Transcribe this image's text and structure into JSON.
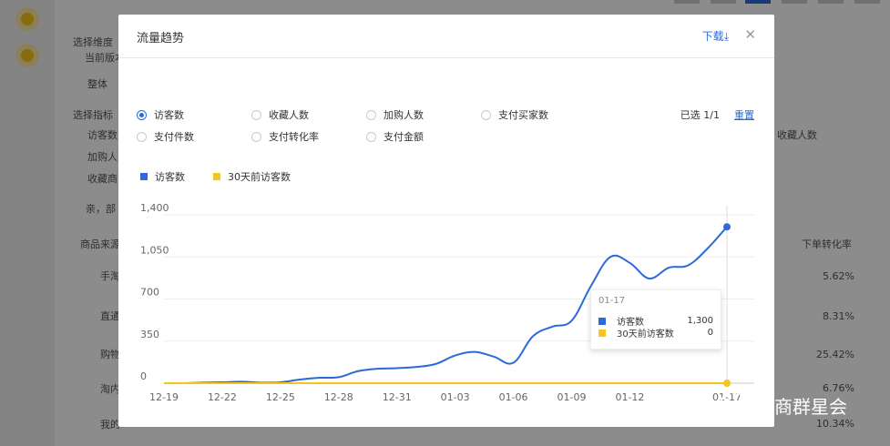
{
  "background": {
    "dimension_label": "选择维度",
    "current_label": "当前版本",
    "overall_label": "整体",
    "metric_label": "选择指标",
    "checkbox_items": [
      "访客数",
      "加购人",
      "收藏商"
    ],
    "right_metric": "收藏人数",
    "note": "亲，部",
    "source_header": "商品来源",
    "rate_header": "下单转化率",
    "rows": [
      {
        "name": "手淘",
        "rate": "5.62%"
      },
      {
        "name": "直通",
        "rate": "8.31%"
      },
      {
        "name": "购物",
        "rate": "25.42%"
      },
      {
        "name": "淘内",
        "rate": "6.76%"
      },
      {
        "name": "我的",
        "rate": "10.34%"
      }
    ]
  },
  "modal": {
    "title": "流量趋势",
    "download_label": "下载",
    "download_icon": "download-icon",
    "close_icon": "close-icon",
    "metrics": [
      {
        "label": "访客数",
        "checked": true
      },
      {
        "label": "收藏人数",
        "checked": false
      },
      {
        "label": "加购人数",
        "checked": false
      },
      {
        "label": "支付买家数",
        "checked": false
      },
      {
        "label": "支付件数",
        "checked": false
      },
      {
        "label": "支付转化率",
        "checked": false
      },
      {
        "label": "支付金额",
        "checked": false
      }
    ],
    "selected_info": "已选 1/1",
    "reset_label": "重置",
    "tooltip": {
      "date": "01-17",
      "rows": [
        {
          "name": "访客数",
          "value": "1,300"
        },
        {
          "name": "30天前访客数",
          "value": "0"
        }
      ]
    }
  },
  "colors": {
    "accent": "#2b6ad8",
    "series1": "#2b6ad8",
    "series2": "#f5c518"
  },
  "chart_data": {
    "type": "line",
    "x": [
      "12-19",
      "12-20",
      "12-21",
      "12-22",
      "12-23",
      "12-24",
      "12-25",
      "12-26",
      "12-27",
      "12-28",
      "12-29",
      "12-30",
      "12-31",
      "01-01",
      "01-02",
      "01-03",
      "01-04",
      "01-05",
      "01-06",
      "01-07",
      "01-08",
      "01-09",
      "01-10",
      "01-11",
      "01-12",
      "01-13",
      "01-14",
      "01-15",
      "01-16",
      "01-17"
    ],
    "tick_labels": [
      "12-19",
      "12-22",
      "12-25",
      "12-28",
      "12-31",
      "01-03",
      "01-06",
      "01-09",
      "01-12",
      "01-17"
    ],
    "yticks": [
      "0",
      "350",
      "700",
      "1,050",
      "1,400"
    ],
    "ylim": [
      0,
      1400
    ],
    "series": [
      {
        "name": "访客数",
        "values": [
          0,
          0,
          5,
          8,
          12,
          5,
          8,
          30,
          45,
          50,
          100,
          120,
          125,
          135,
          160,
          230,
          260,
          220,
          170,
          390,
          470,
          520,
          810,
          1050,
          1000,
          870,
          960,
          980,
          1120,
          1300
        ]
      },
      {
        "name": "30天前访客数",
        "values": [
          0,
          0,
          0,
          0,
          0,
          0,
          0,
          0,
          0,
          0,
          0,
          0,
          0,
          0,
          0,
          0,
          0,
          0,
          0,
          0,
          0,
          0,
          0,
          0,
          0,
          0,
          0,
          0,
          0,
          0
        ]
      }
    ]
  },
  "watermark": "电商群星会"
}
